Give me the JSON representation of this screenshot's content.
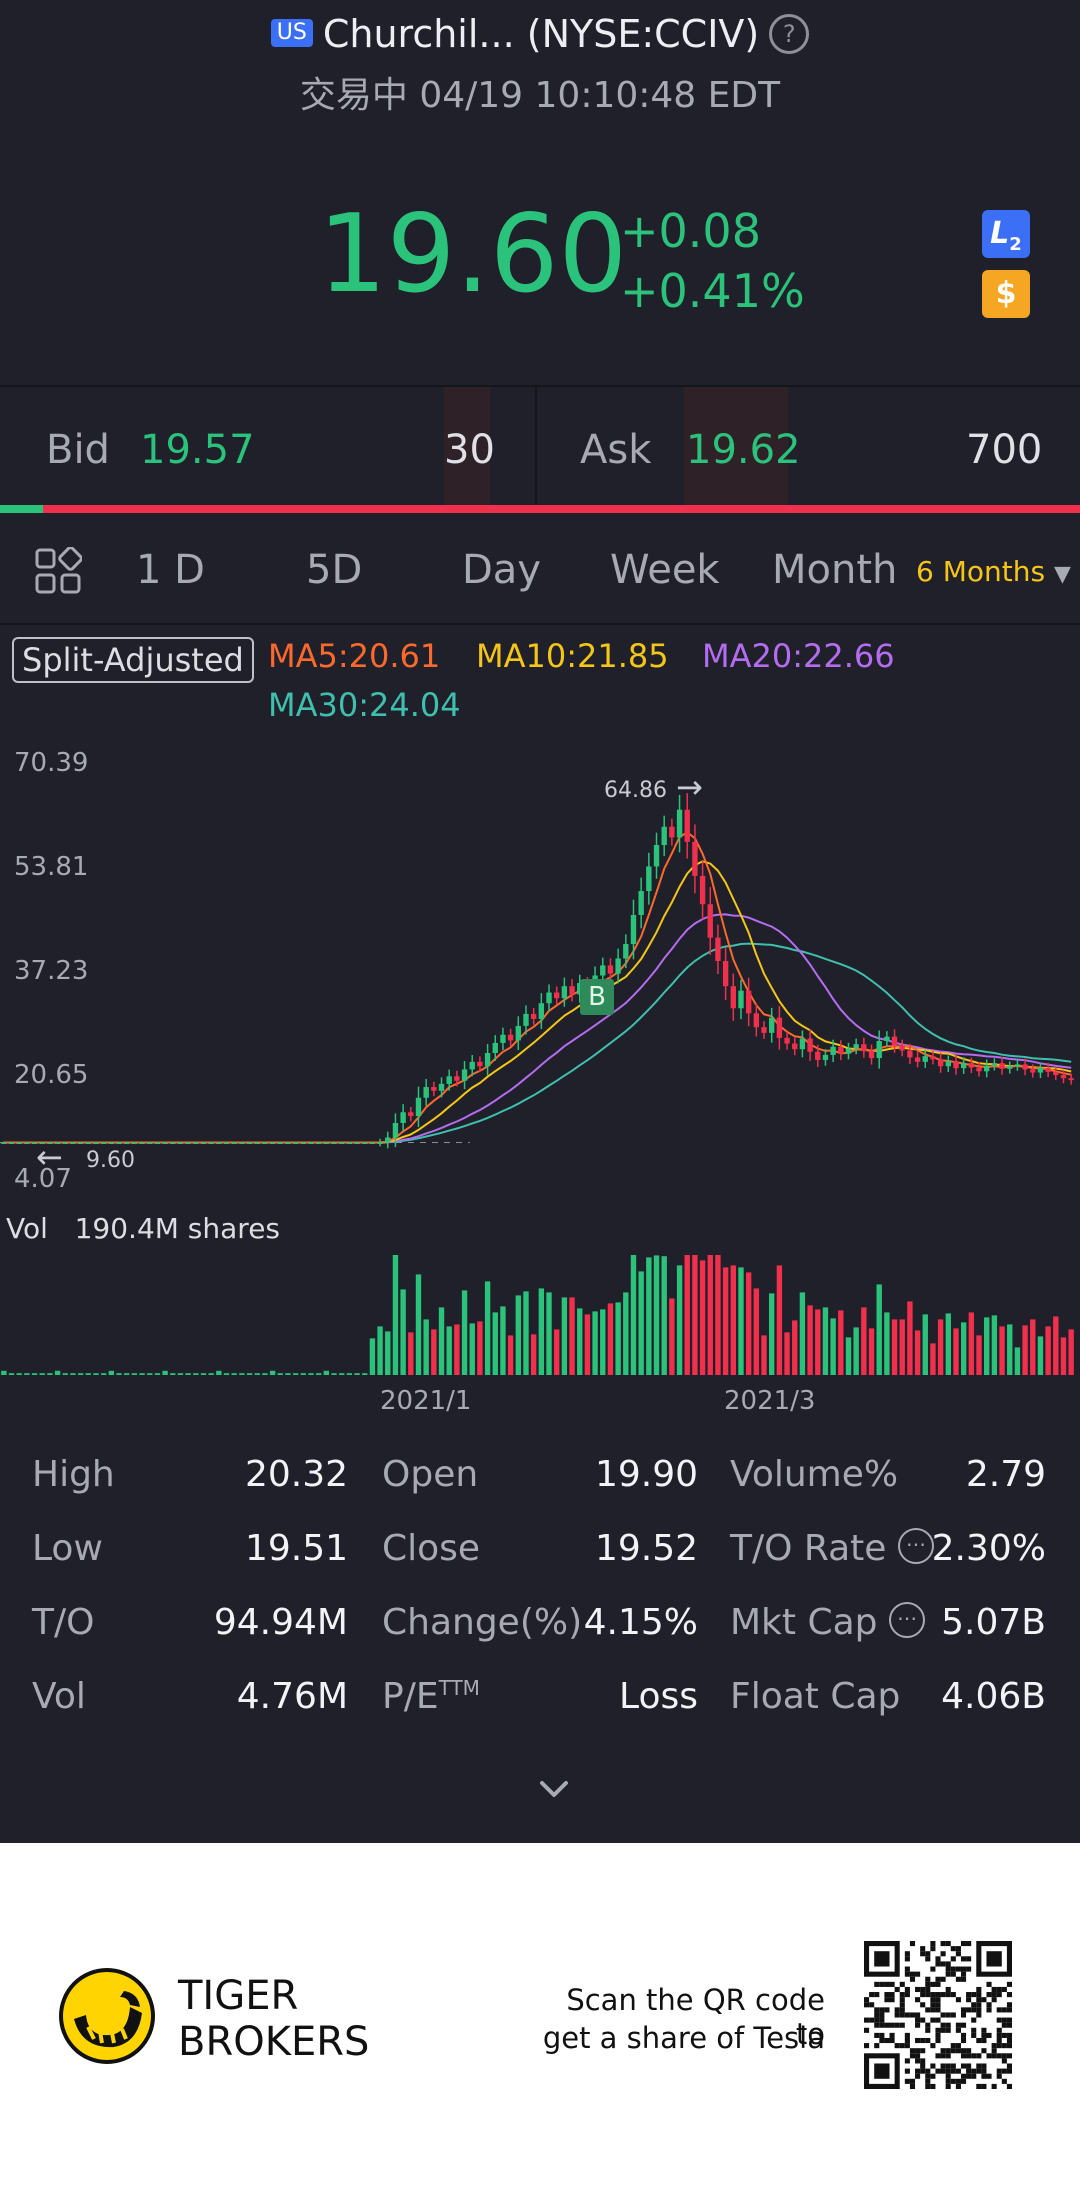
{
  "header": {
    "market_badge": "US",
    "title": "Churchil... (NYSE:CCIV)",
    "help_icon": "question-circle-icon",
    "status": "交易中 04/19 10:10:48 EDT"
  },
  "quote": {
    "price": "19.60",
    "change": "+0.08",
    "change_pct": "+0.41%",
    "l2_badge": "L",
    "l2_sub": "2",
    "currency_badge": "$",
    "up_color": "#2bc37b"
  },
  "bidask": {
    "bid_label": "Bid",
    "bid_price": "19.57",
    "bid_qty": "30",
    "ask_label": "Ask",
    "ask_price": "19.62",
    "ask_qty": "700",
    "bid_ratio": 0.04
  },
  "tabs": {
    "grid_icon": "grid-icon",
    "items": [
      "1 D",
      "5D",
      "Day",
      "Week",
      "Month"
    ],
    "selected": "6 Months",
    "dropdown_icon": "caret-down-icon"
  },
  "chart": {
    "split_label": "Split-Adjusted",
    "ma5": "MA5:20.61",
    "ma10": "MA10:21.85",
    "ma20": "MA20:22.66",
    "ma30": "MA30:24.04",
    "colors": {
      "ma5": "#ff6a2c",
      "ma10": "#f5c518",
      "ma20": "#b46cf0",
      "ma30": "#3fbfae"
    },
    "y_ticks": [
      "70.39",
      "53.81",
      "37.23",
      "20.65",
      "4.07"
    ],
    "high_marker": "64.86",
    "low_marker": "9.60",
    "b_marker": "B",
    "vol_label": "Vol",
    "vol_value": "190.4M shares",
    "x_ticks": [
      "2021/1",
      "2021/3"
    ]
  },
  "chart_data": {
    "type": "candlestick",
    "ylim": [
      4.07,
      70.39
    ],
    "y_ticks": [
      70.39,
      53.81,
      37.23,
      20.65,
      4.07
    ],
    "x_ticks": [
      "2021/1",
      "2021/3"
    ],
    "high": 64.86,
    "low": 9.6,
    "close": [
      9.7,
      9.7,
      9.7,
      9.7,
      9.7,
      9.7,
      9.7,
      9.7,
      9.7,
      9.7,
      9.7,
      9.7,
      9.7,
      9.7,
      9.7,
      9.7,
      9.7,
      9.7,
      9.7,
      9.7,
      9.7,
      9.7,
      9.7,
      9.7,
      9.7,
      9.7,
      9.7,
      9.7,
      9.7,
      9.7,
      9.7,
      9.7,
      9.7,
      9.7,
      9.7,
      9.7,
      9.7,
      9.7,
      9.7,
      9.7,
      9.7,
      9.7,
      9.7,
      9.7,
      9.7,
      9.7,
      9.7,
      9.7,
      9.7,
      9.7,
      10.5,
      12.8,
      14.5,
      13.9,
      16.8,
      18.5,
      17.9,
      19.0,
      20.2,
      19.5,
      21.3,
      22.5,
      21.8,
      23.9,
      25.5,
      26.8,
      25.9,
      28.2,
      30.1,
      29.3,
      31.8,
      33.5,
      32.6,
      34.5,
      33.2,
      35.0,
      34.1,
      36.2,
      37.8,
      36.5,
      38.9,
      41.2,
      45.8,
      49.6,
      53.5,
      56.9,
      59.8,
      58.1,
      62.5,
      57.4,
      52.0,
      47.5,
      42.2,
      38.5,
      34.5,
      31.0,
      33.8,
      30.2,
      28.0,
      27.1,
      29.5,
      26.3,
      25.4,
      24.5,
      26.2,
      24.1,
      22.8,
      23.6,
      24.9,
      23.8,
      24.6,
      25.3,
      24.2,
      23.1,
      25.8,
      26.5,
      25.1,
      24.3,
      23.2,
      22.5,
      23.4,
      22.9,
      21.8,
      22.6,
      21.5,
      22.3,
      21.6,
      21.0,
      21.9,
      22.3,
      21.4,
      21.8,
      22.1,
      21.3,
      20.8,
      21.5,
      20.9,
      20.4,
      19.9,
      19.6
    ],
    "volume_unit": "M shares",
    "vol_max": 190.4
  },
  "stats": {
    "rows": [
      [
        {
          "l": "High",
          "v": "20.32"
        },
        {
          "l": "Open",
          "v": "19.90"
        },
        {
          "l": "Volume%",
          "v": "2.79"
        }
      ],
      [
        {
          "l": "Low",
          "v": "19.51"
        },
        {
          "l": "Close",
          "v": "19.52"
        },
        {
          "l": "T/O Rate",
          "v": "2.30%"
        }
      ],
      [
        {
          "l": "T/O",
          "v": "94.94M"
        },
        {
          "l": "Change(%)",
          "v": "4.15%"
        },
        {
          "l": "Mkt Cap",
          "v": "5.07B"
        }
      ],
      [
        {
          "l": "Vol",
          "v": "4.76M"
        },
        {
          "l": "P/E",
          "v": "Loss"
        },
        {
          "l": "Float Cap",
          "v": "4.06B"
        }
      ]
    ],
    "pe_sup": "TTM",
    "info_icon": "ellipsis-circle-icon",
    "expand_icon": "chevron-down-icon"
  },
  "footer": {
    "brand_line1": "TIGER",
    "brand_line2": "BROKERS",
    "logo_icon": "tiger-logo-icon",
    "scan_line1": "Scan the QR code to",
    "scan_line2": "get a share of Tesla",
    "qr_icon": "qr-code-icon",
    "logo_color": "#ffd400"
  }
}
